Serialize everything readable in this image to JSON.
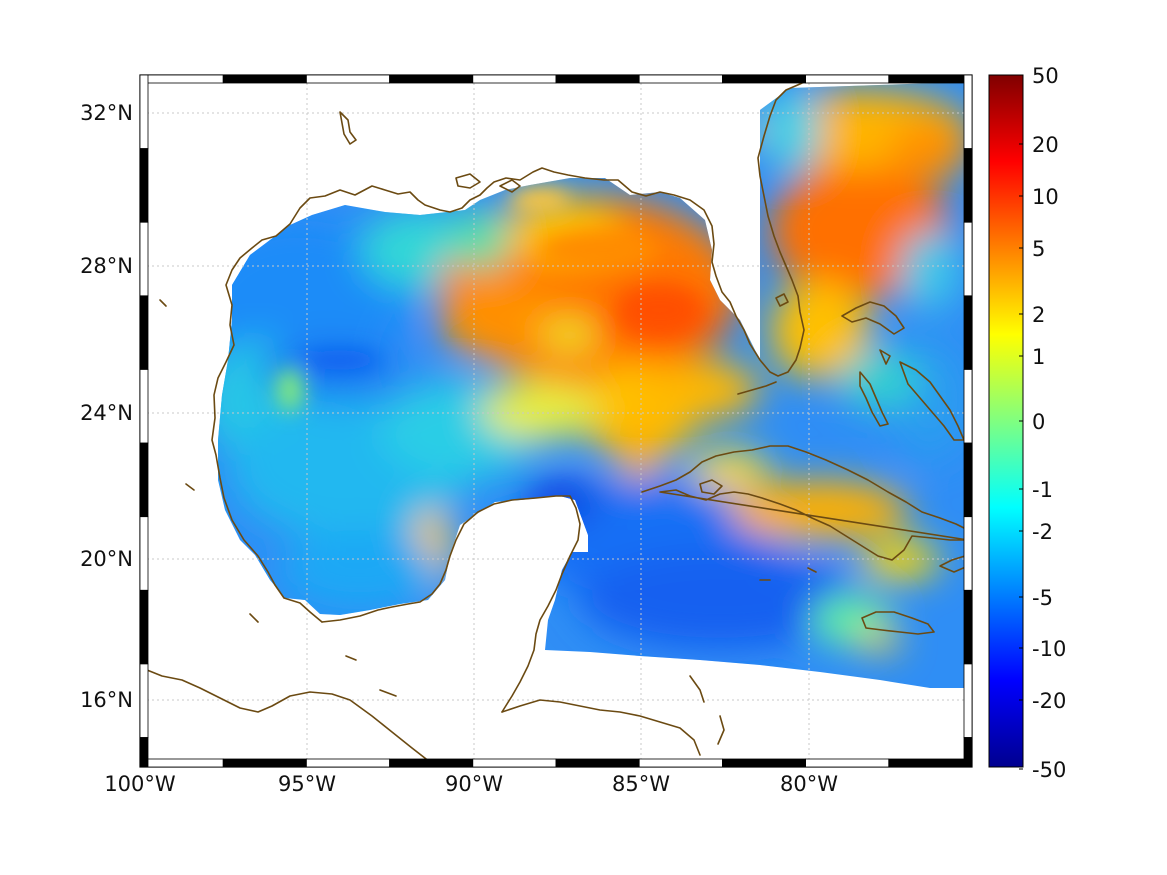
{
  "map": {
    "type": "filled-contour-map",
    "region": "Gulf of Mexico and Caribbean",
    "lon_range": [
      -100,
      -75
    ],
    "lat_range": [
      14.2,
      33
    ],
    "longitude_ticks": [
      {
        "value": -100,
        "label": "100°W"
      },
      {
        "value": -95,
        "label": "95°W"
      },
      {
        "value": -90,
        "label": "90°W"
      },
      {
        "value": -85,
        "label": "85°W"
      },
      {
        "value": -80,
        "label": "80°W"
      }
    ],
    "latitude_ticks": [
      {
        "value": 32,
        "label": "32°N"
      },
      {
        "value": 28,
        "label": "28°N"
      },
      {
        "value": 24,
        "label": "24°N"
      },
      {
        "value": 20,
        "label": "20°N"
      },
      {
        "value": 16,
        "label": "16°N"
      }
    ],
    "grid": true,
    "frame_style": "alternating black-white checkered border",
    "coastline_color": "#6b4a12"
  },
  "colorbar": {
    "colormap": "jet",
    "scale": "nonlinear (symmetric log-like)",
    "placement": "right",
    "ticks": [
      "50",
      "20",
      "10",
      "5",
      "2",
      "1",
      "0",
      "-1",
      "-2",
      "-5",
      "-10",
      "-20",
      "-50"
    ],
    "range": [
      -50,
      50
    ]
  },
  "field_regions": [
    {
      "name": "northeastern Gulf high",
      "approx_lon": -85,
      "approx_lat": 27,
      "value_level": "5 to 10"
    },
    {
      "name": "Florida current / Atlantic high",
      "approx_lon": -77.5,
      "approx_lat": 29,
      "value_level": "5 to 10"
    },
    {
      "name": "Loop current tongue",
      "approx_lon": -85.2,
      "approx_lat": 23,
      "value_level": "1 to 2"
    },
    {
      "name": "south of Cuba band",
      "approx_lon": -79,
      "approx_lat": 21,
      "value_level": "2 to 5"
    },
    {
      "name": "Bay of Campeche eddy",
      "approx_lon": -91.7,
      "approx_lat": 20.2,
      "value_level": "1 to 2"
    },
    {
      "name": "western Gulf low",
      "approx_lon": -95,
      "approx_lat": 24,
      "value_level": "-2 to -5"
    },
    {
      "name": "Caribbean low",
      "approx_lon": -84,
      "approx_lat": 18.5,
      "value_level": "-5 to -10"
    }
  ]
}
